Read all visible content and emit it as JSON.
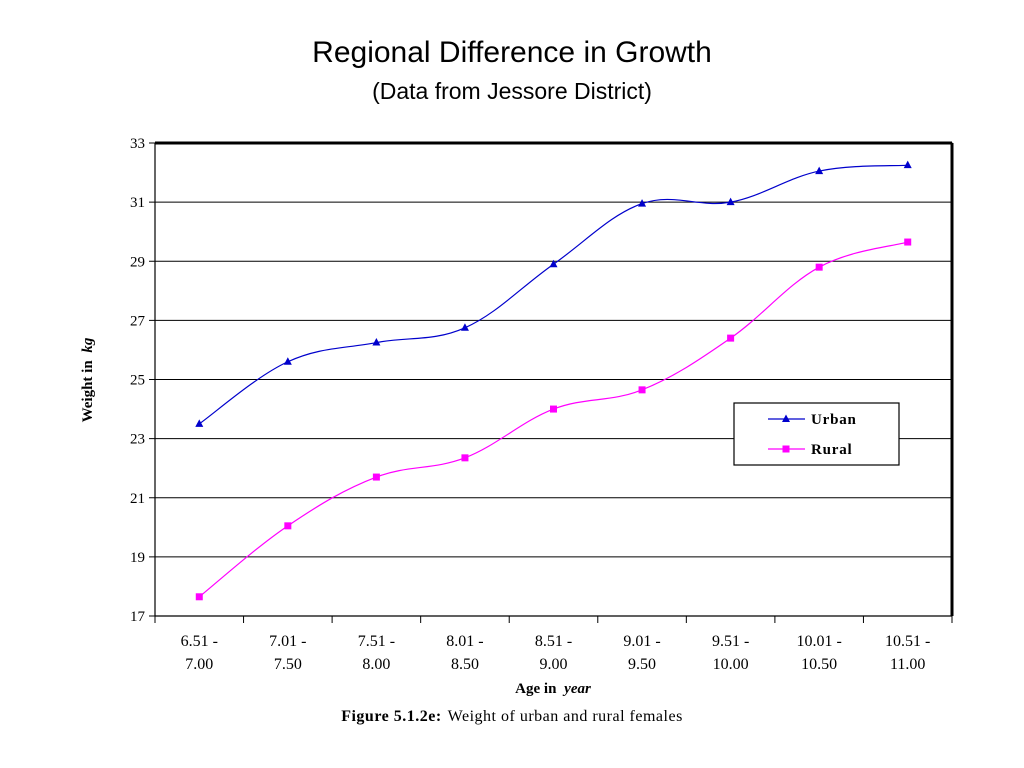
{
  "slide": {
    "title": "Regional Difference in Growth",
    "subtitle": "(Data from Jessore District)"
  },
  "figure_caption": {
    "label": "Figure 5.1.2e:",
    "text": "Weight of urban and rural females"
  },
  "chart_data": {
    "type": "line",
    "categories": [
      [
        "6.51 -",
        "7.00"
      ],
      [
        "7.01 -",
        "7.50"
      ],
      [
        "7.51 -",
        "8.00"
      ],
      [
        "8.01 -",
        "8.50"
      ],
      [
        "8.51 -",
        "9.00"
      ],
      [
        "9.01 -",
        "9.50"
      ],
      [
        "9.51 -",
        "10.00"
      ],
      [
        "10.01 -",
        "10.50"
      ],
      [
        "10.51 -",
        "11.00"
      ]
    ],
    "series": [
      {
        "name": "Urban",
        "color": "#0000cc",
        "marker": "triangle",
        "values": [
          23.5,
          25.6,
          26.25,
          26.75,
          28.9,
          30.95,
          31.0,
          32.05,
          32.25
        ]
      },
      {
        "name": "Rural",
        "color": "#ff00ff",
        "marker": "square",
        "values": [
          17.65,
          20.05,
          21.7,
          22.35,
          24.0,
          24.65,
          26.4,
          28.8,
          29.65
        ]
      }
    ],
    "xlabel_prefix": "Age in",
    "xlabel_unit": "year",
    "ylabel_prefix": "Weight in",
    "ylabel_unit": "kg",
    "ylim": [
      17,
      33
    ],
    "yticks": [
      17,
      19,
      21,
      23,
      25,
      27,
      29,
      31,
      33
    ],
    "grid": true,
    "legend_position": "right"
  }
}
